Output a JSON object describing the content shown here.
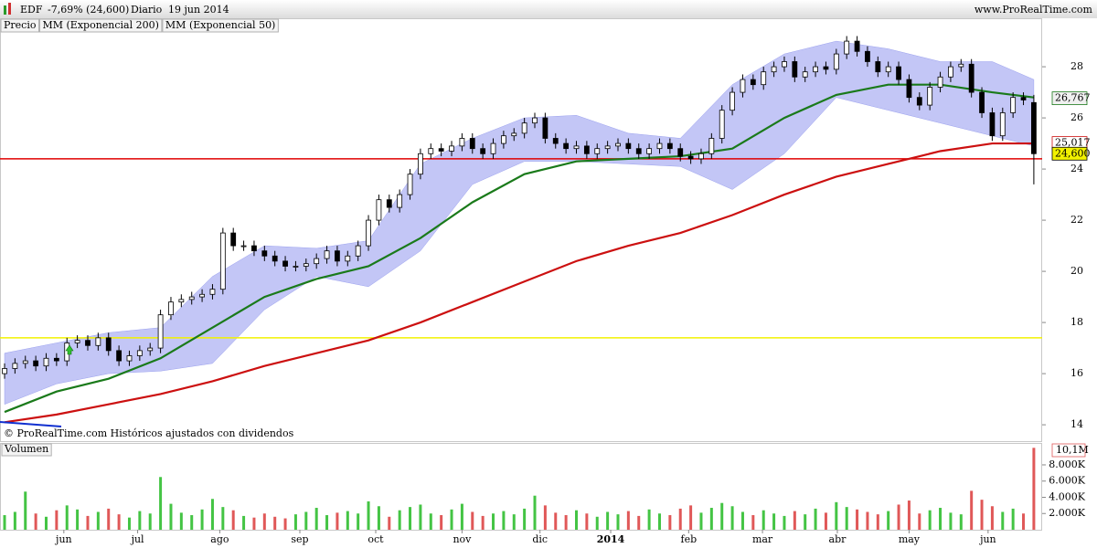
{
  "header": {
    "symbol": "EDF",
    "change": "-7,69% (24,600)",
    "period": "Diario",
    "date": "19 jun 2014",
    "site": "www.ProRealTime.com",
    "note": "© ProRealTime.com  Históricos ajustados con dividendos"
  },
  "chart_data": [
    {
      "type": "candlestick",
      "name": "Precio",
      "x": [
        0,
        1,
        2,
        3,
        4,
        5,
        6,
        7,
        8,
        9,
        10,
        11,
        12,
        13,
        14,
        15,
        16,
        17,
        18,
        19,
        20,
        21,
        22,
        23,
        24,
        25,
        26,
        27,
        28,
        29,
        30,
        31,
        32,
        33,
        34,
        35,
        36,
        37,
        38,
        39,
        40,
        41,
        42,
        43,
        44,
        45,
        46,
        47,
        48,
        49,
        50,
        51,
        52,
        53,
        54,
        55,
        56,
        57,
        58,
        59,
        60,
        61,
        62,
        63,
        64,
        65,
        66,
        67,
        68,
        69,
        70,
        71,
        72,
        73,
        74,
        75,
        76,
        77,
        78,
        79,
        80,
        81,
        82,
        83,
        84,
        85,
        86,
        87,
        88,
        89,
        90,
        91,
        92,
        93,
        94,
        95,
        96,
        97,
        98,
        99
      ],
      "open": [
        16.0,
        16.2,
        16.4,
        16.5,
        16.3,
        16.6,
        16.5,
        17.2,
        17.3,
        17.1,
        17.4,
        16.9,
        16.5,
        16.7,
        16.9,
        17.0,
        18.3,
        18.8,
        18.9,
        19.0,
        19.1,
        19.3,
        21.5,
        21.0,
        21.0,
        20.8,
        20.6,
        20.4,
        20.2,
        20.2,
        20.3,
        20.5,
        20.8,
        20.4,
        20.6,
        21.0,
        22.0,
        22.8,
        22.5,
        23.0,
        23.8,
        24.6,
        24.8,
        24.7,
        24.9,
        25.2,
        24.8,
        24.6,
        25.0,
        25.3,
        25.4,
        25.8,
        26.0,
        25.2,
        25.0,
        24.8,
        24.9,
        24.6,
        24.8,
        24.9,
        25.0,
        24.8,
        24.6,
        24.8,
        25.0,
        24.8,
        24.5,
        24.4,
        24.6,
        25.2,
        26.3,
        27.0,
        27.5,
        27.3,
        27.8,
        28.0,
        28.2,
        27.6,
        27.8,
        28.0,
        27.9,
        28.5,
        29.0,
        28.6,
        28.2,
        27.8,
        28.0,
        27.5,
        26.8,
        26.5,
        27.2,
        27.6,
        28.0,
        28.1,
        27.0,
        26.2,
        25.3,
        26.2,
        26.8,
        26.6
      ],
      "high": [
        16.4,
        16.6,
        16.7,
        16.7,
        16.8,
        16.8,
        17.4,
        17.5,
        17.5,
        17.6,
        17.6,
        17.1,
        16.9,
        17.1,
        17.2,
        18.5,
        19.0,
        19.1,
        19.2,
        19.3,
        19.5,
        21.7,
        21.7,
        21.2,
        21.2,
        21.0,
        20.8,
        20.6,
        20.4,
        20.5,
        20.7,
        21.0,
        21.0,
        20.8,
        21.2,
        22.2,
        23.0,
        23.0,
        23.2,
        24.0,
        24.8,
        25.0,
        25.0,
        25.1,
        25.4,
        25.4,
        25.0,
        25.2,
        25.5,
        25.6,
        26.0,
        26.2,
        26.2,
        25.4,
        25.2,
        25.1,
        25.1,
        25.0,
        25.1,
        25.2,
        25.2,
        25.0,
        25.0,
        25.2,
        25.2,
        25.0,
        24.7,
        24.8,
        25.4,
        26.5,
        27.2,
        27.7,
        27.7,
        28.0,
        28.2,
        28.4,
        28.4,
        28.0,
        28.2,
        28.2,
        28.7,
        29.2,
        29.2,
        28.8,
        28.4,
        28.2,
        28.2,
        27.7,
        27.0,
        27.4,
        27.8,
        28.2,
        28.3,
        28.3,
        27.2,
        26.4,
        26.4,
        27.0,
        27.0,
        26.9
      ],
      "low": [
        15.8,
        16.0,
        16.2,
        16.1,
        16.1,
        16.3,
        16.3,
        17.0,
        16.9,
        16.9,
        16.7,
        16.3,
        16.3,
        16.5,
        16.7,
        16.8,
        18.1,
        18.6,
        18.7,
        18.8,
        18.9,
        19.1,
        20.8,
        20.8,
        20.6,
        20.4,
        20.2,
        20.0,
        20.0,
        20.0,
        20.1,
        20.3,
        20.2,
        20.2,
        20.4,
        20.8,
        21.8,
        22.3,
        22.3,
        22.8,
        23.6,
        24.4,
        24.5,
        24.5,
        24.7,
        24.6,
        24.4,
        24.4,
        24.8,
        25.1,
        25.2,
        25.6,
        25.0,
        24.8,
        24.6,
        24.6,
        24.4,
        24.4,
        24.6,
        24.7,
        24.6,
        24.4,
        24.4,
        24.6,
        24.6,
        24.3,
        24.2,
        24.2,
        24.4,
        25.0,
        26.1,
        26.8,
        27.1,
        27.1,
        27.6,
        27.8,
        27.4,
        27.4,
        27.6,
        27.7,
        27.7,
        28.3,
        28.4,
        28.0,
        27.6,
        27.6,
        27.3,
        26.6,
        26.3,
        26.3,
        27.0,
        27.4,
        27.8,
        26.8,
        26.0,
        25.1,
        25.1,
        26.0,
        26.5,
        23.4
      ],
      "close": [
        16.2,
        16.4,
        16.5,
        16.3,
        16.6,
        16.5,
        17.2,
        17.3,
        17.1,
        17.4,
        16.9,
        16.5,
        16.7,
        16.9,
        17.0,
        18.3,
        18.8,
        18.9,
        19.0,
        19.1,
        19.3,
        21.5,
        21.0,
        21.0,
        20.8,
        20.6,
        20.4,
        20.2,
        20.2,
        20.3,
        20.5,
        20.8,
        20.4,
        20.6,
        21.0,
        22.0,
        22.8,
        22.5,
        23.0,
        23.8,
        24.6,
        24.8,
        24.7,
        24.9,
        25.2,
        24.8,
        24.6,
        25.0,
        25.3,
        25.4,
        25.8,
        26.0,
        25.2,
        25.0,
        24.8,
        24.9,
        24.6,
        24.8,
        24.9,
        25.0,
        24.8,
        24.6,
        24.8,
        25.0,
        24.8,
        24.5,
        24.4,
        24.6,
        25.2,
        26.3,
        27.0,
        27.5,
        27.3,
        27.8,
        28.0,
        28.2,
        27.6,
        27.8,
        28.0,
        27.9,
        28.5,
        29.0,
        28.6,
        28.2,
        27.8,
        28.0,
        27.5,
        26.8,
        26.5,
        27.2,
        27.6,
        28.0,
        28.1,
        27.0,
        26.2,
        25.3,
        26.2,
        26.8,
        26.7,
        24.6
      ],
      "band": {
        "color": "#b8bcf5",
        "x": [
          0,
          5,
          10,
          15,
          20,
          25,
          30,
          35,
          40,
          45,
          50,
          55,
          60,
          65,
          70,
          75,
          80,
          85,
          90,
          95,
          99
        ],
        "upper": [
          16.8,
          17.2,
          17.6,
          17.8,
          19.8,
          21.0,
          20.9,
          21.2,
          24.2,
          25.2,
          26.0,
          26.1,
          25.4,
          25.2,
          27.3,
          28.5,
          29.0,
          28.7,
          28.2,
          28.2,
          27.5
        ],
        "lower": [
          14.8,
          15.6,
          16.0,
          16.1,
          16.4,
          18.5,
          19.8,
          19.4,
          20.8,
          23.4,
          24.3,
          24.3,
          24.2,
          24.1,
          23.2,
          24.6,
          26.8,
          26.3,
          25.8,
          25.3,
          24.9
        ]
      },
      "series": [
        {
          "name": "MM (Exponencial 200)",
          "color": "#cc1010",
          "x": [
            0,
            5,
            10,
            15,
            20,
            25,
            30,
            35,
            40,
            45,
            50,
            55,
            60,
            65,
            70,
            75,
            80,
            85,
            90,
            95,
            99
          ],
          "values": [
            14.1,
            14.4,
            14.8,
            15.2,
            15.7,
            16.3,
            16.8,
            17.3,
            18.0,
            18.8,
            19.6,
            20.4,
            21.0,
            21.5,
            22.2,
            23.0,
            23.7,
            24.2,
            24.7,
            25.0,
            25.0
          ]
        },
        {
          "name": "MM (Exponencial 50)",
          "color": "#1a7a1a",
          "x": [
            0,
            5,
            10,
            15,
            20,
            25,
            30,
            35,
            40,
            45,
            50,
            55,
            60,
            65,
            70,
            75,
            80,
            85,
            90,
            95,
            99
          ],
          "values": [
            14.5,
            15.3,
            15.8,
            16.6,
            17.8,
            19.0,
            19.7,
            20.2,
            21.3,
            22.7,
            23.8,
            24.3,
            24.4,
            24.5,
            24.8,
            26.0,
            26.9,
            27.3,
            27.3,
            27.0,
            26.8
          ]
        }
      ],
      "hlines": [
        {
          "value": 24.4,
          "color": "#e00000"
        },
        {
          "value": 17.4,
          "color": "#f2f200"
        }
      ],
      "price_labels": [
        {
          "value": 26.767,
          "label": "26,767",
          "color": "#1a7a1a",
          "fill": "#f0f0f0"
        },
        {
          "value": 25.017,
          "label": "25,017",
          "color": "#cc1010",
          "fill": "#ffffff"
        },
        {
          "value": 24.6,
          "label": "24,600",
          "color": "#000000",
          "fill": "#f2f200"
        }
      ],
      "xlim": [
        -0.44,
        99.8
      ],
      "ylim": [
        13.36,
        29.36
      ],
      "yticks": [
        14,
        16,
        18,
        20,
        22,
        24,
        26,
        28
      ],
      "xticks": [
        {
          "value": 5.7,
          "label": "jun"
        },
        {
          "value": 12.8,
          "label": "jul"
        },
        {
          "value": 20.7,
          "label": "ago"
        },
        {
          "value": 28.4,
          "label": "sep"
        },
        {
          "value": 35.7,
          "label": "oct"
        },
        {
          "value": 44,
          "label": "nov"
        },
        {
          "value": 51.5,
          "label": "dic"
        },
        {
          "value": 58.3,
          "label": "2014"
        },
        {
          "value": 65.8,
          "label": "feb"
        },
        {
          "value": 72.9,
          "label": "mar"
        },
        {
          "value": 80.1,
          "label": "abr"
        },
        {
          "value": 87,
          "label": "may"
        },
        {
          "value": 94.6,
          "label": "jun"
        }
      ]
    },
    {
      "type": "bar",
      "name": "Volumen",
      "up_color": "#44c444",
      "down_color": "#e05858",
      "values": [
        1800000,
        2200000,
        4700000,
        2000000,
        1600000,
        2400000,
        3000000,
        2500000,
        1700000,
        2200000,
        2600000,
        1900000,
        1500000,
        2300000,
        2000000,
        6500000,
        3200000,
        2100000,
        1800000,
        2500000,
        3800000,
        2800000,
        2400000,
        1700000,
        1500000,
        2000000,
        1600000,
        1400000,
        1900000,
        2200000,
        2700000,
        1800000,
        2100000,
        2300000,
        2000000,
        3500000,
        2900000,
        1600000,
        2400000,
        2800000,
        3100000,
        2000000,
        1800000,
        2500000,
        3200000,
        2200000,
        1700000,
        2000000,
        2300000,
        1900000,
        2600000,
        4200000,
        3000000,
        2100000,
        1800000,
        2400000,
        2000000,
        1600000,
        2200000,
        1900000,
        2300000,
        1700000,
        2500000,
        2000000,
        1800000,
        2600000,
        3000000,
        2100000,
        2700000,
        3300000,
        2900000,
        2200000,
        1800000,
        2400000,
        2000000,
        1700000,
        2300000,
        1900000,
        2600000,
        2100000,
        3400000,
        2800000,
        2500000,
        2200000,
        1900000,
        2300000,
        3100000,
        3600000,
        2000000,
        2400000,
        2700000,
        2100000,
        1900000,
        4800000,
        3700000,
        2900000,
        2200000,
        2600000,
        2000000,
        10100000
      ],
      "last_label": {
        "value": 10100000,
        "label": "10,1M"
      },
      "ylim": [
        0,
        10700000
      ],
      "yticks": [
        {
          "value": 2000000,
          "label": "2.000K"
        },
        {
          "value": 4000000,
          "label": "4.000K"
        },
        {
          "value": 6000000,
          "label": "6.000K"
        },
        {
          "value": 8000000,
          "label": "8.000K"
        }
      ]
    }
  ]
}
